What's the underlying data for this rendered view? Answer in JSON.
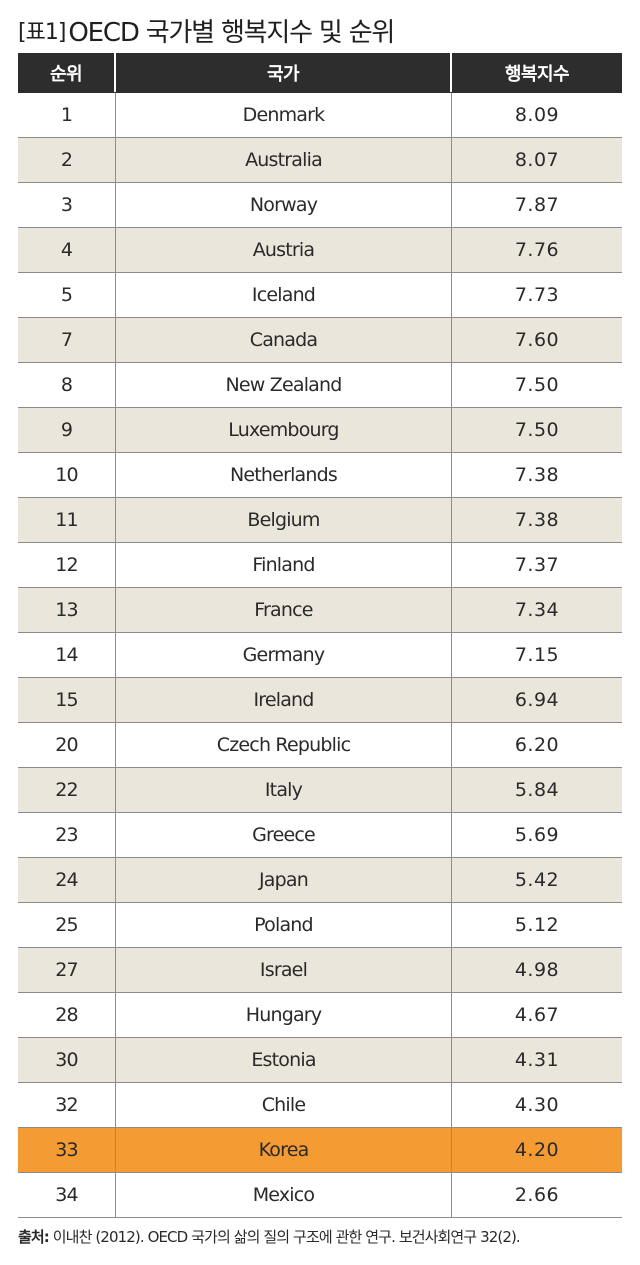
{
  "title": {
    "tag": "[표1]",
    "text": "OECD 국가별 행복지수 및 순위"
  },
  "table": {
    "columns": [
      "순위",
      "국가",
      "행복지수"
    ],
    "rows": [
      {
        "rank": "1",
        "country": "Denmark",
        "index": "8.09"
      },
      {
        "rank": "2",
        "country": "Australia",
        "index": "8.07"
      },
      {
        "rank": "3",
        "country": "Norway",
        "index": "7.87"
      },
      {
        "rank": "4",
        "country": "Austria",
        "index": "7.76"
      },
      {
        "rank": "5",
        "country": "Iceland",
        "index": "7.73"
      },
      {
        "rank": "7",
        "country": "Canada",
        "index": "7.60"
      },
      {
        "rank": "8",
        "country": "New Zealand",
        "index": "7.50"
      },
      {
        "rank": "9",
        "country": "Luxembourg",
        "index": "7.50"
      },
      {
        "rank": "10",
        "country": "Netherlands",
        "index": "7.38"
      },
      {
        "rank": "11",
        "country": "Belgium",
        "index": "7.38"
      },
      {
        "rank": "12",
        "country": "Finland",
        "index": "7.37"
      },
      {
        "rank": "13",
        "country": "France",
        "index": "7.34"
      },
      {
        "rank": "14",
        "country": "Germany",
        "index": "7.15"
      },
      {
        "rank": "15",
        "country": "Ireland",
        "index": "6.94"
      },
      {
        "rank": "20",
        "country": "Czech Republic",
        "index": "6.20"
      },
      {
        "rank": "22",
        "country": "Italy",
        "index": "5.84"
      },
      {
        "rank": "23",
        "country": "Greece",
        "index": "5.69"
      },
      {
        "rank": "24",
        "country": "Japan",
        "index": "5.42"
      },
      {
        "rank": "25",
        "country": "Poland",
        "index": "5.12"
      },
      {
        "rank": "27",
        "country": "Israel",
        "index": "4.98"
      },
      {
        "rank": "28",
        "country": "Hungary",
        "index": "4.67"
      },
      {
        "rank": "30",
        "country": "Estonia",
        "index": "4.31"
      },
      {
        "rank": "32",
        "country": "Chile",
        "index": "4.30"
      },
      {
        "rank": "33",
        "country": "Korea",
        "index": "4.20",
        "highlight": true
      },
      {
        "rank": "34",
        "country": "Mexico",
        "index": "2.66"
      }
    ]
  },
  "source": {
    "label": "출처:",
    "text": "이내찬 (2012). OECD 국가의 삶의 질의 구조에 관한 연구. 보건사회연구 32(2)."
  },
  "colors": {
    "header_bg": "#2d2d2d",
    "alt_row_bg": "#ebe6dc",
    "highlight_bg": "#f59b33"
  }
}
